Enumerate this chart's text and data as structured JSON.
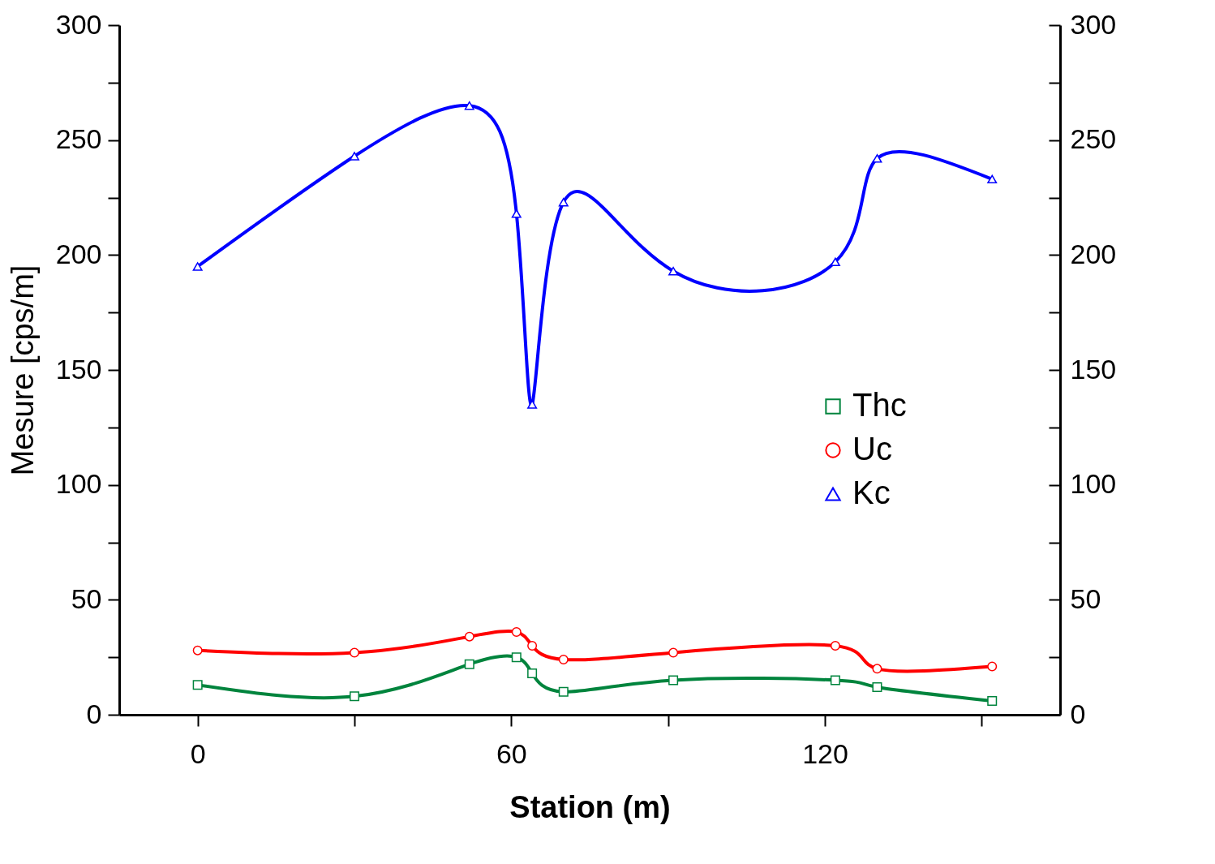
{
  "chart_data": {
    "type": "line",
    "xlabel": "Station (m)",
    "ylabel": "Mesure [cps/m]",
    "x": [
      0,
      30,
      52,
      61,
      64,
      70,
      91,
      122,
      130,
      152
    ],
    "series": [
      {
        "name": "Thc",
        "color": "#00843d",
        "marker": "square",
        "values": [
          13,
          8,
          22,
          25,
          18,
          10,
          15,
          15,
          12,
          6
        ]
      },
      {
        "name": "Uc",
        "color": "#ff0000",
        "marker": "circle",
        "values": [
          28,
          27,
          34,
          36,
          30,
          24,
          27,
          30,
          20,
          21
        ]
      },
      {
        "name": "Kc",
        "color": "#0000ff",
        "marker": "triangle",
        "values": [
          195,
          243,
          265,
          218,
          135,
          223,
          193,
          197,
          242,
          233
        ]
      }
    ],
    "xlim": [
      -15,
      165
    ],
    "xticks": [
      0,
      {
        "value": 30,
        "label": null
      },
      60,
      {
        "value": 90,
        "label": null
      },
      120,
      {
        "value": 150,
        "label": null
      }
    ],
    "ylim": [
      0,
      300
    ],
    "yticks": [
      0,
      {
        "value": 25,
        "label": null
      },
      50,
      {
        "value": 75,
        "label": null
      },
      100,
      {
        "value": 125,
        "label": null
      },
      150,
      {
        "value": 175,
        "label": null
      },
      200,
      {
        "value": 225,
        "label": null
      },
      250,
      {
        "value": 275,
        "label": null
      },
      300
    ],
    "y2lim": [
      0,
      300
    ],
    "y2ticks": [
      0,
      {
        "value": 25,
        "label": null
      },
      50,
      {
        "value": 75,
        "label": null
      },
      100,
      {
        "value": 125,
        "label": null
      },
      150,
      {
        "value": 175,
        "label": null
      },
      200,
      {
        "value": 225,
        "label": null
      },
      250,
      {
        "value": 275,
        "label": null
      },
      300
    ],
    "legend": "right",
    "grid": false,
    "line_style": "solid"
  }
}
